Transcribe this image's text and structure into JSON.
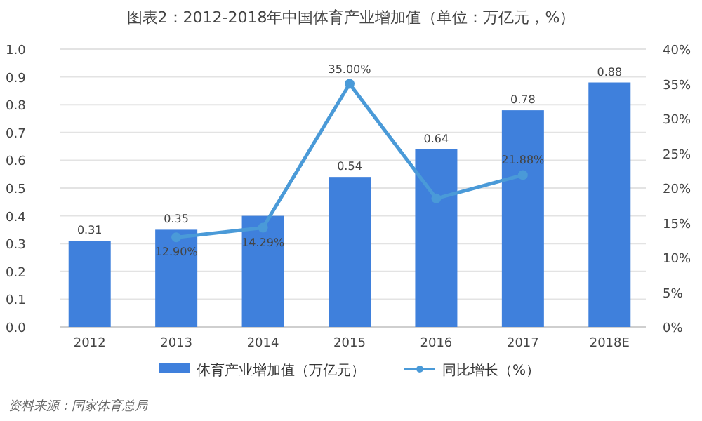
{
  "chart_data": {
    "type": "bar",
    "title": "图表2：2012-2018年中国体育产业增加值（单位：万亿元，%）",
    "categories": [
      "2012",
      "2013",
      "2014",
      "2015",
      "2016",
      "2017",
      "2018E"
    ],
    "series": [
      {
        "name": "体育产业增加值（万亿元）",
        "color": "#3f80dc",
        "values": [
          0.31,
          0.35,
          0.4,
          0.54,
          0.64,
          0.78,
          0.88
        ],
        "value_labels": [
          "0.31",
          "0.35",
          null,
          "0.54",
          "0.64",
          "0.78",
          "0.88"
        ]
      },
      {
        "name": "同比增长（%）",
        "type": "line",
        "axis": "y2",
        "color": "#4a9ad8",
        "marker": "circle",
        "values": [
          null,
          12.9,
          14.29,
          35.0,
          18.5,
          21.88,
          null
        ],
        "value_labels": [
          null,
          "12.90%",
          "14.29%",
          "35.00%",
          null,
          "21.88%",
          null
        ]
      }
    ],
    "ylim": [
      0,
      1.0
    ],
    "yticks": [
      {
        "value": 0,
        "label": "0.0"
      },
      0.1,
      0.2,
      0.3,
      0.4,
      0.5,
      0.6,
      0.7,
      0.8,
      0.9,
      {
        "value": 1,
        "label": "1.0"
      }
    ],
    "y2lim": [
      0,
      40
    ],
    "y2ticks": [
      {
        "value": 0,
        "label": "0%"
      },
      {
        "value": 5,
        "label": "5%"
      },
      {
        "value": 10,
        "label": "10%"
      },
      {
        "value": 15,
        "label": "15%"
      },
      {
        "value": 20,
        "label": "20%"
      },
      {
        "value": 25,
        "label": "25%"
      },
      {
        "value": 30,
        "label": "30%"
      },
      {
        "value": 35,
        "label": "35%"
      },
      {
        "value": 40,
        "label": "40%"
      }
    ],
    "grid": "y",
    "legend": "bottom",
    "annotations": [
      "资料来源：国家体育总局"
    ]
  }
}
